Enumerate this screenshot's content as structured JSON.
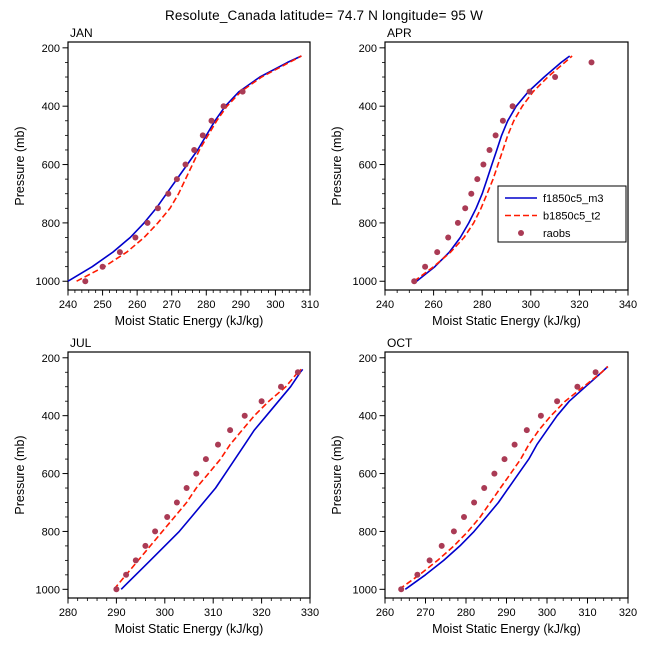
{
  "title": "Resolute_Canada  latitude= 74.7 N longitude= 95 W",
  "colors": {
    "model1": "#0000cc",
    "model2": "#ff1a00",
    "obs": "#aa3b55",
    "axis": "#000000",
    "background": "#ffffff"
  },
  "legend": {
    "entries": [
      "f1850c5_m3",
      "b1850c5_t2",
      "raobs"
    ]
  },
  "chart_data": [
    {
      "type": "line",
      "title": "JAN",
      "xlabel": "Moist Static Energy (kJ/kg)",
      "ylabel": "Pressure (mb)",
      "xlim": [
        240,
        310
      ],
      "xticks": [
        240,
        250,
        260,
        270,
        280,
        290,
        300,
        310
      ],
      "xminor": 2,
      "ylim": [
        180,
        1030
      ],
      "y_inverted": true,
      "yticks": [
        200,
        400,
        600,
        800,
        1000
      ],
      "yminor": 50,
      "legend": {
        "show": false
      },
      "series": [
        {
          "name": "f1850c5_m3",
          "style": "solid",
          "color": "#0000cc",
          "pressure": [
            1000,
            950,
            900,
            850,
            800,
            750,
            700,
            650,
            600,
            550,
            500,
            450,
            400,
            350,
            300,
            250,
            228
          ],
          "mse": [
            240,
            247,
            253,
            258,
            262,
            265.5,
            268.5,
            271.5,
            274.5,
            277.5,
            280,
            282.5,
            285.5,
            289.5,
            295.5,
            303.5,
            307.5
          ]
        },
        {
          "name": "b1850c5_t2",
          "style": "dashed",
          "color": "#ff1a00",
          "pressure": [
            1000,
            950,
            900,
            850,
            800,
            750,
            700,
            650,
            600,
            550,
            500,
            450,
            400,
            350,
            300,
            250,
            228
          ],
          "mse": [
            242.5,
            250.5,
            257,
            262,
            266,
            269.5,
            272,
            274,
            276,
            278,
            280.5,
            283,
            286,
            290,
            296,
            304,
            307.5
          ]
        },
        {
          "name": "raobs",
          "style": "markers",
          "color": "#aa3b55",
          "pressure": [
            1000,
            950,
            900,
            850,
            800,
            750,
            700,
            650,
            600,
            550,
            500,
            450,
            400,
            350
          ],
          "mse": [
            245,
            250,
            255,
            259.5,
            263,
            266,
            269,
            271.5,
            274,
            276.5,
            279,
            281.5,
            285,
            290.5
          ]
        }
      ]
    },
    {
      "type": "line",
      "title": "APR",
      "xlabel": "Moist Static Energy (kJ/kg)",
      "ylabel": "Pressure (mb)",
      "xlim": [
        240,
        340
      ],
      "xticks": [
        240,
        260,
        280,
        300,
        320,
        340
      ],
      "xminor": 5,
      "ylim": [
        180,
        1030
      ],
      "y_inverted": true,
      "yticks": [
        200,
        400,
        600,
        800,
        1000
      ],
      "yminor": 50,
      "legend": {
        "show": true,
        "position": "right-middle"
      },
      "series": [
        {
          "name": "f1850c5_m3",
          "style": "solid",
          "color": "#0000cc",
          "pressure": [
            1000,
            950,
            900,
            850,
            800,
            750,
            700,
            650,
            600,
            550,
            500,
            450,
            400,
            350,
            300,
            250,
            228
          ],
          "mse": [
            253,
            260.5,
            266.5,
            271,
            274.5,
            277.5,
            280,
            282,
            284,
            286,
            288,
            290.5,
            294,
            299,
            305.5,
            312.5,
            316
          ]
        },
        {
          "name": "b1850c5_t2",
          "style": "dashed",
          "color": "#ff1a00",
          "pressure": [
            1000,
            950,
            900,
            850,
            800,
            750,
            700,
            650,
            600,
            550,
            500,
            450,
            400,
            350,
            300,
            250,
            228
          ],
          "mse": [
            252,
            260,
            267,
            272.5,
            276.5,
            279.5,
            282,
            284.5,
            286.5,
            288.5,
            290.5,
            293,
            296.5,
            301,
            307,
            314,
            317
          ]
        },
        {
          "name": "raobs",
          "style": "markers",
          "color": "#aa3b55",
          "pressure": [
            1000,
            950,
            900,
            850,
            800,
            750,
            700,
            650,
            600,
            550,
            500,
            450,
            400,
            350,
            300,
            250
          ],
          "mse": [
            252,
            256.5,
            261.5,
            266,
            270,
            273,
            275.5,
            278,
            280.5,
            283,
            285.5,
            288.5,
            292.5,
            299.5,
            310,
            325
          ]
        }
      ]
    },
    {
      "type": "line",
      "title": "JUL",
      "xlabel": "Moist Static Energy (kJ/kg)",
      "ylabel": "Pressure (mb)",
      "xlim": [
        280,
        330
      ],
      "xticks": [
        280,
        290,
        300,
        310,
        320,
        330
      ],
      "xminor": 2,
      "ylim": [
        180,
        1030
      ],
      "y_inverted": true,
      "yticks": [
        200,
        400,
        600,
        800,
        1000
      ],
      "yminor": 50,
      "legend": {
        "show": false
      },
      "series": [
        {
          "name": "f1850c5_m3",
          "style": "solid",
          "color": "#0000cc",
          "pressure": [
            1000,
            950,
            900,
            850,
            800,
            750,
            700,
            650,
            600,
            550,
            500,
            450,
            400,
            350,
            300,
            250,
            240
          ],
          "mse": [
            291,
            294,
            297,
            300,
            303,
            305.5,
            308,
            310.5,
            312.5,
            314.5,
            316.5,
            318.5,
            321,
            323.5,
            326,
            328,
            328.5
          ]
        },
        {
          "name": "b1850c5_t2",
          "style": "dashed",
          "color": "#ff1a00",
          "pressure": [
            1000,
            950,
            900,
            850,
            800,
            750,
            700,
            650,
            600,
            550,
            500,
            450,
            400,
            350,
            300,
            250,
            240
          ],
          "mse": [
            289.5,
            292,
            294.5,
            297,
            299.5,
            302,
            304.5,
            306.5,
            309,
            311.5,
            313.5,
            316,
            318.5,
            321.5,
            325,
            327.5,
            328.2
          ]
        },
        {
          "name": "raobs",
          "style": "markers",
          "color": "#aa3b55",
          "pressure": [
            1000,
            950,
            900,
            850,
            800,
            750,
            700,
            650,
            600,
            550,
            500,
            450,
            400,
            350,
            300,
            250
          ],
          "mse": [
            290,
            292,
            294,
            296,
            298,
            300.5,
            302.5,
            304.5,
            306.5,
            308.5,
            311,
            313.5,
            316.5,
            320,
            324,
            327.5
          ]
        }
      ]
    },
    {
      "type": "line",
      "title": "OCT",
      "xlabel": "Moist Static Energy (kJ/kg)",
      "ylabel": "Pressure (mb)",
      "xlim": [
        260,
        320
      ],
      "xticks": [
        260,
        270,
        280,
        290,
        300,
        310,
        320
      ],
      "xminor": 2,
      "ylim": [
        180,
        1030
      ],
      "y_inverted": true,
      "yticks": [
        200,
        400,
        600,
        800,
        1000
      ],
      "yminor": 50,
      "legend": {
        "show": false
      },
      "series": [
        {
          "name": "f1850c5_m3",
          "style": "solid",
          "color": "#0000cc",
          "pressure": [
            1000,
            950,
            900,
            850,
            800,
            750,
            700,
            650,
            600,
            550,
            500,
            450,
            400,
            350,
            300,
            250,
            230
          ],
          "mse": [
            265,
            270,
            274.5,
            278.5,
            282,
            285,
            288,
            290.5,
            293,
            295.5,
            297.5,
            300,
            302.5,
            305.5,
            309.5,
            313.5,
            315
          ]
        },
        {
          "name": "b1850c5_t2",
          "style": "dashed",
          "color": "#ff1a00",
          "pressure": [
            1000,
            950,
            900,
            850,
            800,
            750,
            700,
            650,
            600,
            550,
            500,
            450,
            400,
            350,
            300,
            250,
            230
          ],
          "mse": [
            263.5,
            268.5,
            273,
            277,
            280.5,
            283.5,
            286,
            288.5,
            291,
            293.5,
            295.5,
            298,
            301,
            304.5,
            309,
            313.5,
            315
          ]
        },
        {
          "name": "raobs",
          "style": "markers",
          "color": "#aa3b55",
          "pressure": [
            1000,
            950,
            900,
            850,
            800,
            750,
            700,
            650,
            600,
            550,
            500,
            450,
            400,
            350,
            300,
            250
          ],
          "mse": [
            264,
            268,
            271,
            274,
            277,
            279.5,
            282,
            284.5,
            287,
            289.5,
            292,
            295,
            298.5,
            302.5,
            307.5,
            312
          ]
        }
      ]
    }
  ]
}
